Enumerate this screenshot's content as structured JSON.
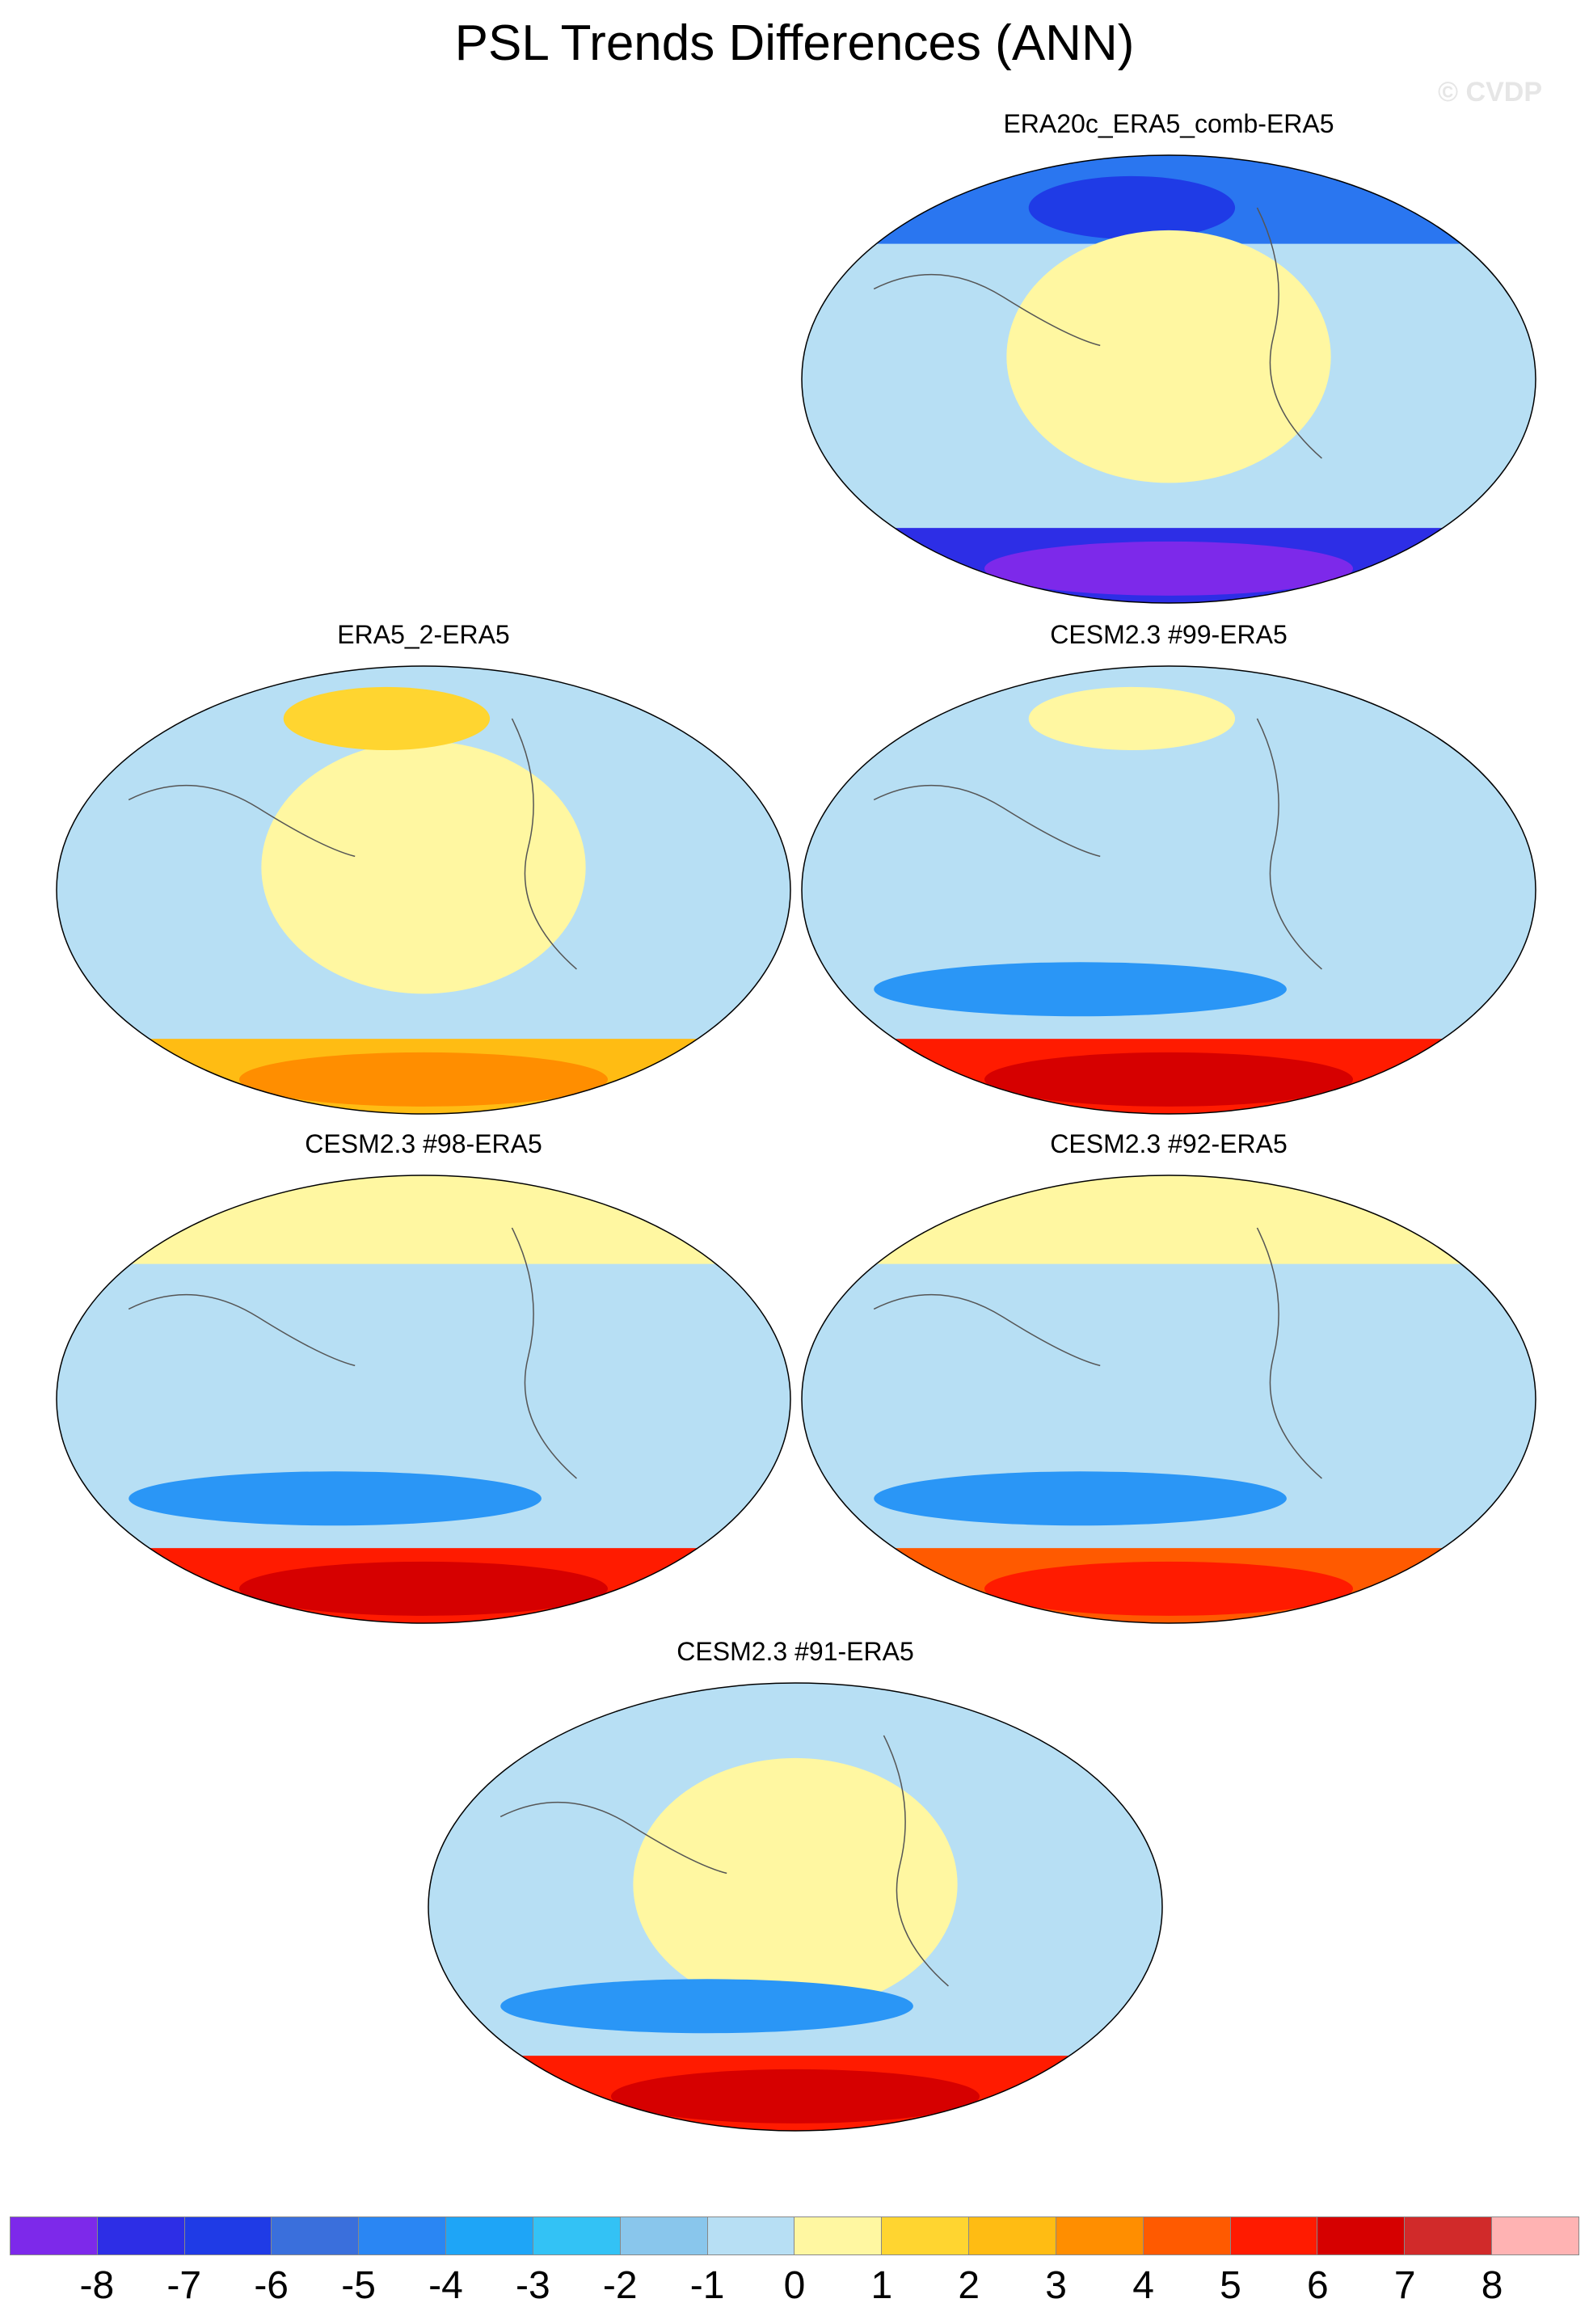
{
  "title": "PSL Trends Differences (ANN)",
  "watermark": "© CVDP",
  "panels": [
    {
      "id": "p1",
      "label": "ERA20c_ERA5_comb-ERA5",
      "base": "#b7dff4",
      "features": [
        {
          "shape": "n-band",
          "color": "#2a76f0"
        },
        {
          "shape": "n-spot",
          "color": "#1f3be6"
        },
        {
          "shape": "s-band",
          "color": "#2d2ee6"
        },
        {
          "shape": "s-spot",
          "color": "#7d29ea"
        },
        {
          "shape": "mid-blob",
          "color": "#fff7a1"
        }
      ]
    },
    {
      "id": "p2",
      "label": "ERA5_2-ERA5",
      "base": "#b7dff4",
      "features": [
        {
          "shape": "mid-blob",
          "color": "#fff7a1"
        },
        {
          "shape": "n-spot",
          "color": "#ffd530"
        },
        {
          "shape": "s-band",
          "color": "#ffbc13"
        },
        {
          "shape": "s-spot",
          "color": "#ff8e00"
        }
      ]
    },
    {
      "id": "p3",
      "label": "CESM2.3 #99-ERA5",
      "base": "#b7dff4",
      "features": [
        {
          "shape": "s-blue",
          "color": "#2a96f6"
        },
        {
          "shape": "s-band",
          "color": "#ff1b00"
        },
        {
          "shape": "s-spot",
          "color": "#d60000"
        },
        {
          "shape": "n-spot",
          "color": "#fff7a1"
        }
      ]
    },
    {
      "id": "p4",
      "label": "CESM2.3 #98-ERA5",
      "base": "#b7dff4",
      "features": [
        {
          "shape": "n-band",
          "color": "#fff7a1"
        },
        {
          "shape": "s-blue",
          "color": "#2a96f6"
        },
        {
          "shape": "s-band",
          "color": "#ff1b00"
        },
        {
          "shape": "s-spot",
          "color": "#d60000"
        }
      ]
    },
    {
      "id": "p5",
      "label": "CESM2.3 #92-ERA5",
      "base": "#b7dff4",
      "features": [
        {
          "shape": "n-band",
          "color": "#fff7a1"
        },
        {
          "shape": "s-blue",
          "color": "#2a96f6"
        },
        {
          "shape": "s-band",
          "color": "#ff5a00"
        },
        {
          "shape": "s-spot",
          "color": "#ff1b00"
        }
      ]
    },
    {
      "id": "p6",
      "label": "CESM2.3 #91-ERA5",
      "base": "#b7dff4",
      "features": [
        {
          "shape": "mid-blob",
          "color": "#fff7a1"
        },
        {
          "shape": "s-blue",
          "color": "#2a96f6"
        },
        {
          "shape": "s-band",
          "color": "#ff1b00"
        },
        {
          "shape": "s-spot",
          "color": "#d60000"
        }
      ]
    }
  ],
  "colorbar": {
    "colors": [
      "#7d29ea",
      "#2d2ee6",
      "#1f3be6",
      "#3a6fdc",
      "#2a86f3",
      "#1ea5f7",
      "#33c2f5",
      "#89c6ec",
      "#b7dff4",
      "#fff7a1",
      "#ffd530",
      "#ffbc13",
      "#ff8e00",
      "#ff5a00",
      "#ff1b00",
      "#d60000",
      "#d12a2a",
      "#ffb3b3"
    ],
    "labels": [
      "-8",
      "-7",
      "-6",
      "-5",
      "-4",
      "-3",
      "-2",
      "-1",
      "0",
      "1",
      "2",
      "3",
      "4",
      "5",
      "6",
      "7",
      "8"
    ]
  }
}
